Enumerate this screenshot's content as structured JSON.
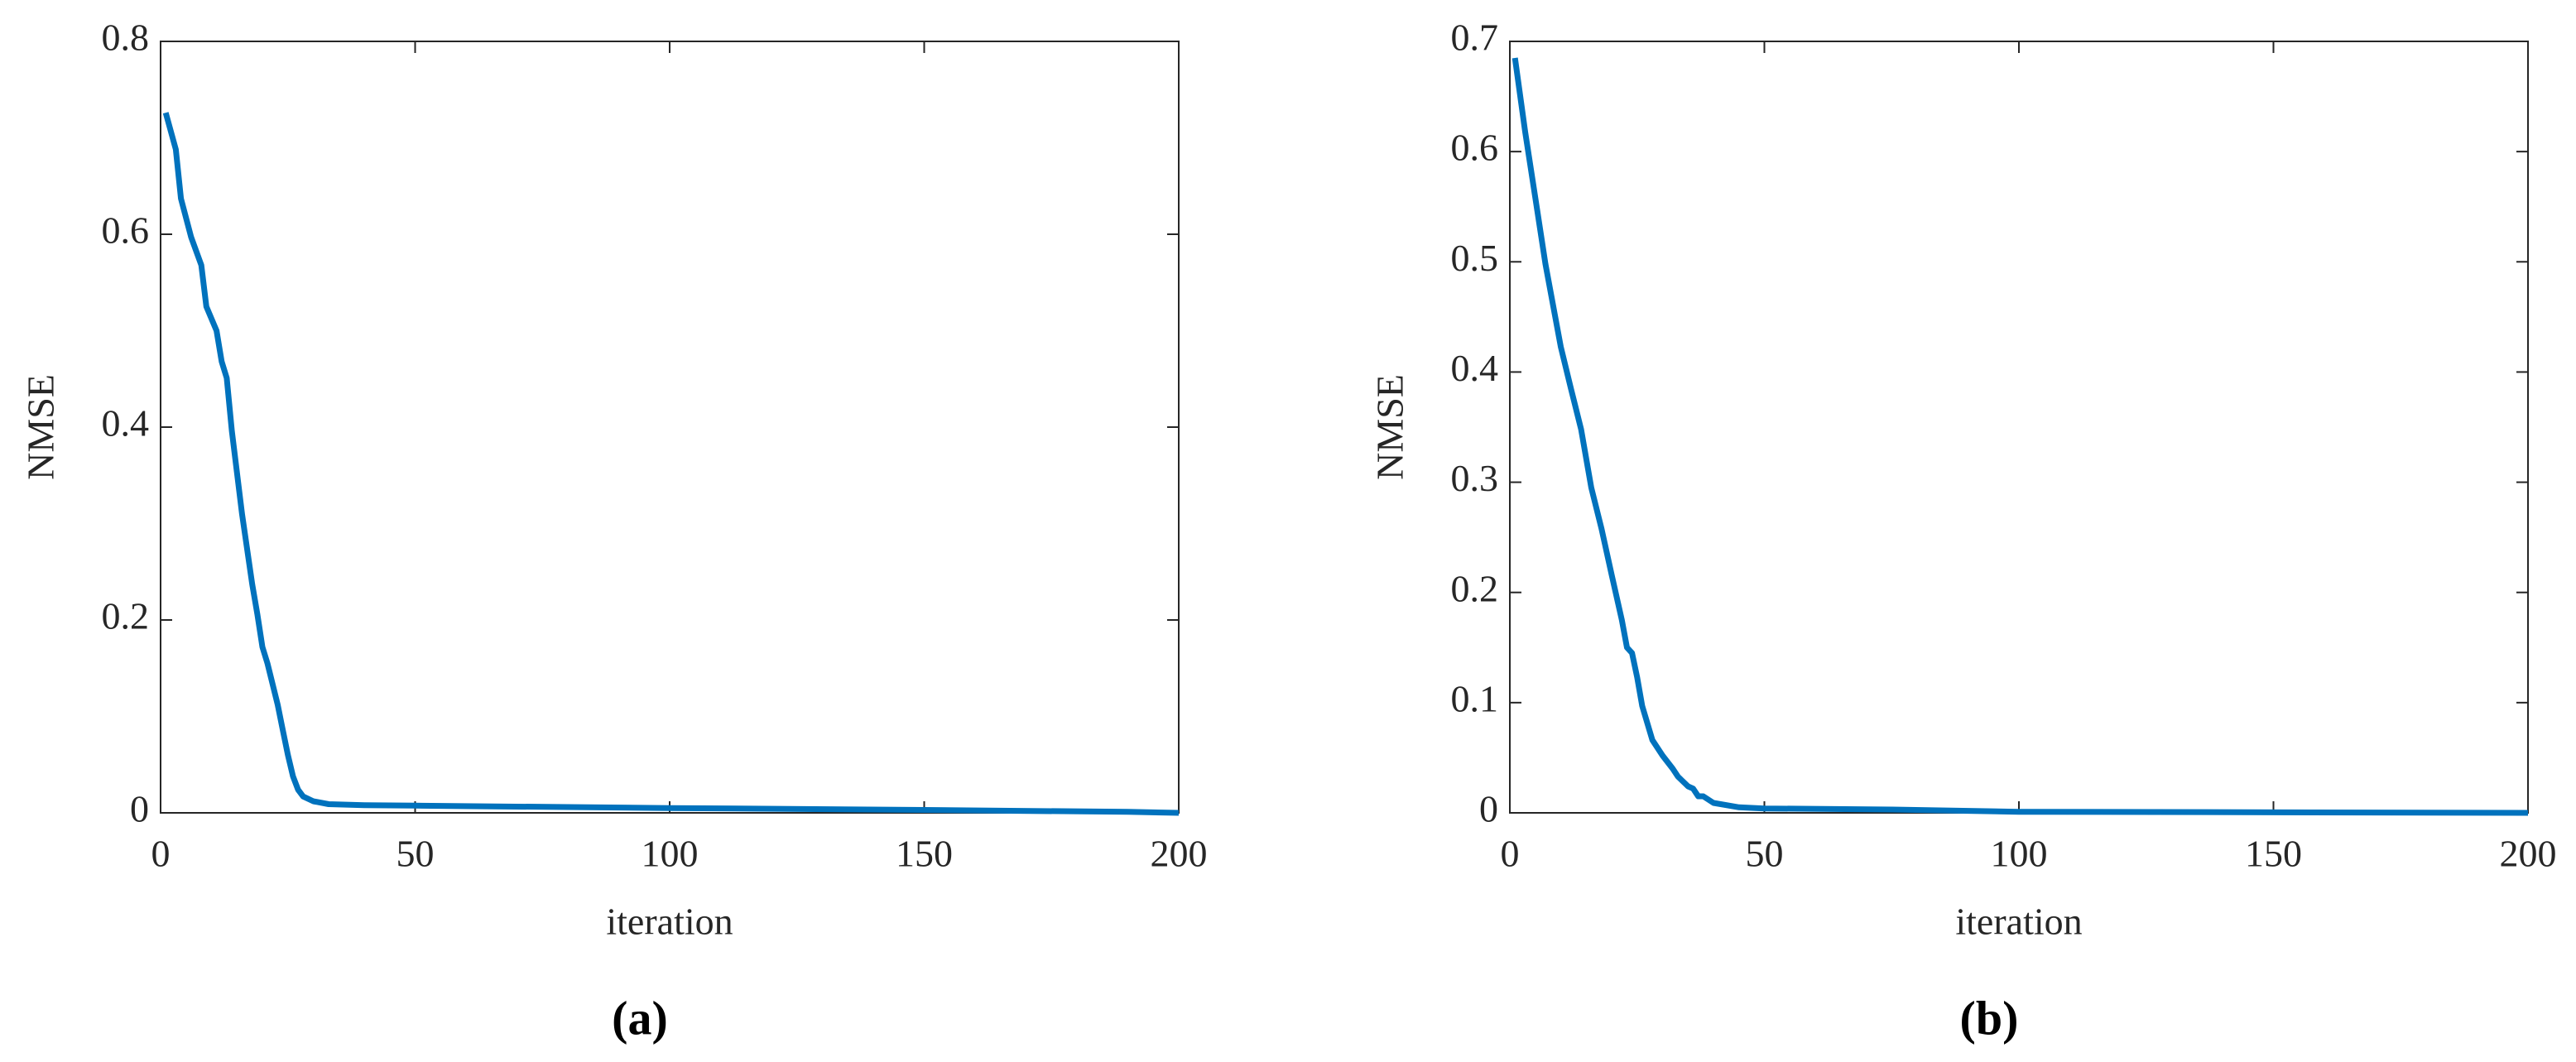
{
  "chart_data": [
    {
      "type": "line",
      "caption": "(a)",
      "xlabel": "iteration",
      "ylabel": "NMSE",
      "color": "#0072bd",
      "xlim": [
        0,
        200
      ],
      "xticks": [
        0,
        50,
        100,
        150,
        200
      ],
      "ylim": [
        0,
        0.8
      ],
      "yticks": [
        0,
        0.2,
        0.4,
        0.6,
        0.8
      ],
      "x": [
        1,
        3,
        4,
        6,
        8,
        9,
        11,
        12,
        13,
        14,
        16,
        18,
        19,
        20,
        21,
        23,
        24,
        25,
        26,
        27,
        28,
        30,
        33,
        40,
        50,
        100,
        150,
        190,
        200
      ],
      "values": [
        0.726,
        0.688,
        0.637,
        0.597,
        0.568,
        0.525,
        0.5,
        0.468,
        0.451,
        0.396,
        0.31,
        0.237,
        0.206,
        0.172,
        0.155,
        0.112,
        0.086,
        0.06,
        0.038,
        0.024,
        0.017,
        0.012,
        0.009,
        0.008,
        0.0075,
        0.005,
        0.003,
        0.001,
        0
      ]
    },
    {
      "type": "line",
      "caption": "(b)",
      "xlabel": "iteration",
      "ylabel": "NMSE",
      "color": "#0072bd",
      "xlim": [
        0,
        200
      ],
      "xticks": [
        0,
        50,
        100,
        150,
        200
      ],
      "ylim": [
        0,
        0.7
      ],
      "yticks": [
        0,
        0.1,
        0.2,
        0.3,
        0.4,
        0.5,
        0.6,
        0.7
      ],
      "x": [
        1,
        3,
        5,
        7,
        10,
        12,
        14,
        16,
        18,
        20,
        22,
        23,
        24,
        25,
        26,
        28,
        30,
        32,
        33,
        35,
        36,
        37,
        38,
        40,
        45,
        50,
        75,
        100,
        200
      ],
      "values": [
        0.685,
        0.618,
        0.558,
        0.498,
        0.423,
        0.385,
        0.348,
        0.295,
        0.258,
        0.216,
        0.175,
        0.15,
        0.145,
        0.123,
        0.097,
        0.066,
        0.052,
        0.04,
        0.033,
        0.024,
        0.022,
        0.015,
        0.015,
        0.009,
        0.005,
        0.004,
        0.003,
        0.001,
        0
      ]
    }
  ]
}
